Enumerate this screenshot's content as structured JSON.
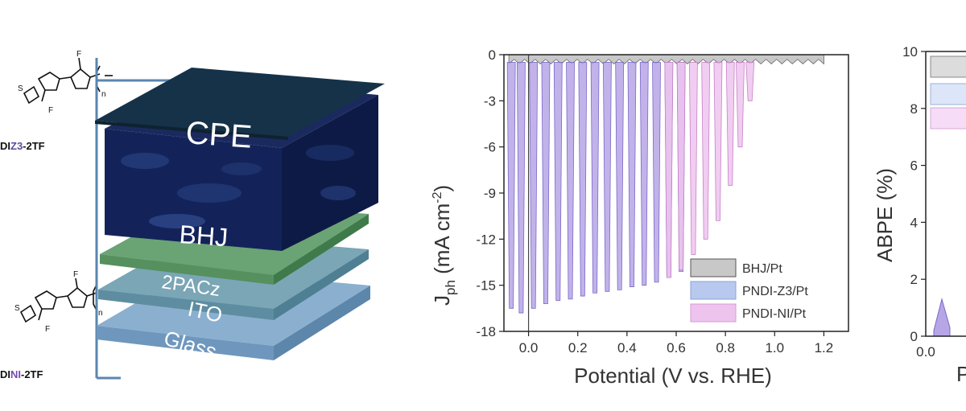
{
  "molecules": [
    {
      "name_pre": "DI",
      "name_mid": "Z3",
      "name_post": "-2TF",
      "mid_color": "#5a4aa6"
    },
    {
      "name_pre": "DI",
      "name_mid": "NI",
      "name_post": "-2TF",
      "mid_color": "#7a4ab0"
    }
  ],
  "atoms": {
    "fluorine": "F",
    "sulfur": "S",
    "subscript": "n"
  },
  "device_layers": [
    "CPE",
    "BHJ",
    "2PACz",
    "ITO",
    "Glass"
  ],
  "colors": {
    "bhj_gray": "#c8c8c8",
    "z3_blue": "#b9c8ef",
    "ni_pink": "#eec4ee",
    "trace_purple": "#b6a6e6"
  },
  "chart_data": [
    {
      "type": "area",
      "xlabel": "Potential (V vs. RHE)",
      "ylabel_main": "J",
      "ylabel_sub": "ph",
      "ylabel_rest": " (mA cm",
      "ylabel_sup": "-2",
      "ylabel_close": ")",
      "xlim": [
        -0.1,
        1.3
      ],
      "ylim": [
        -18,
        0
      ],
      "xticks": [
        "0.0",
        "0.2",
        "0.4",
        "0.6",
        "0.8",
        "1.0",
        "1.2"
      ],
      "yticks": [
        "0",
        "-3",
        "-6",
        "-9",
        "-12",
        "-15",
        "-18"
      ],
      "legend_position": "bottom-right",
      "series": [
        {
          "name": "BHJ/Pt",
          "color": "#c8c8c8",
          "x": [
            -0.08,
            1.2
          ],
          "y": [
            -0.6,
            -0.3
          ]
        },
        {
          "name": "PNDI-Z3/Pt",
          "color": "#b9c8ef",
          "x": [
            -0.07,
            -0.03,
            0.02,
            0.07,
            0.12,
            0.17,
            0.22,
            0.27,
            0.32,
            0.37,
            0.42,
            0.47,
            0.52,
            0.57,
            0.62
          ],
          "y": [
            -16.5,
            -16.8,
            -16.5,
            -16.2,
            -16.0,
            -15.9,
            -15.7,
            -15.5,
            -15.4,
            -15.3,
            -15.1,
            -15.0,
            -14.8,
            -14.5,
            -14.1
          ]
        },
        {
          "name": "PNDI-NI/Pt",
          "color": "#eec4ee",
          "x": [
            0.57,
            0.62,
            0.67,
            0.72,
            0.77,
            0.82,
            0.86,
            0.9
          ],
          "y": [
            -14.5,
            -14.0,
            -13.0,
            -12.0,
            -10.8,
            -8.5,
            -6.0,
            -3.0
          ]
        }
      ]
    },
    {
      "type": "area",
      "ylabel": "ABPE (%)",
      "xlabel": "P",
      "ylim": [
        0,
        10
      ],
      "yticks": [
        "0",
        "2",
        "4",
        "6",
        "8",
        "10"
      ],
      "xticks": [
        "0.0"
      ],
      "series": [
        {
          "name": "",
          "color": "#b6a6e6",
          "x": [
            0.05,
            0.1,
            0.15
          ],
          "y": [
            0.2,
            1.3,
            0.3
          ]
        }
      ]
    }
  ]
}
